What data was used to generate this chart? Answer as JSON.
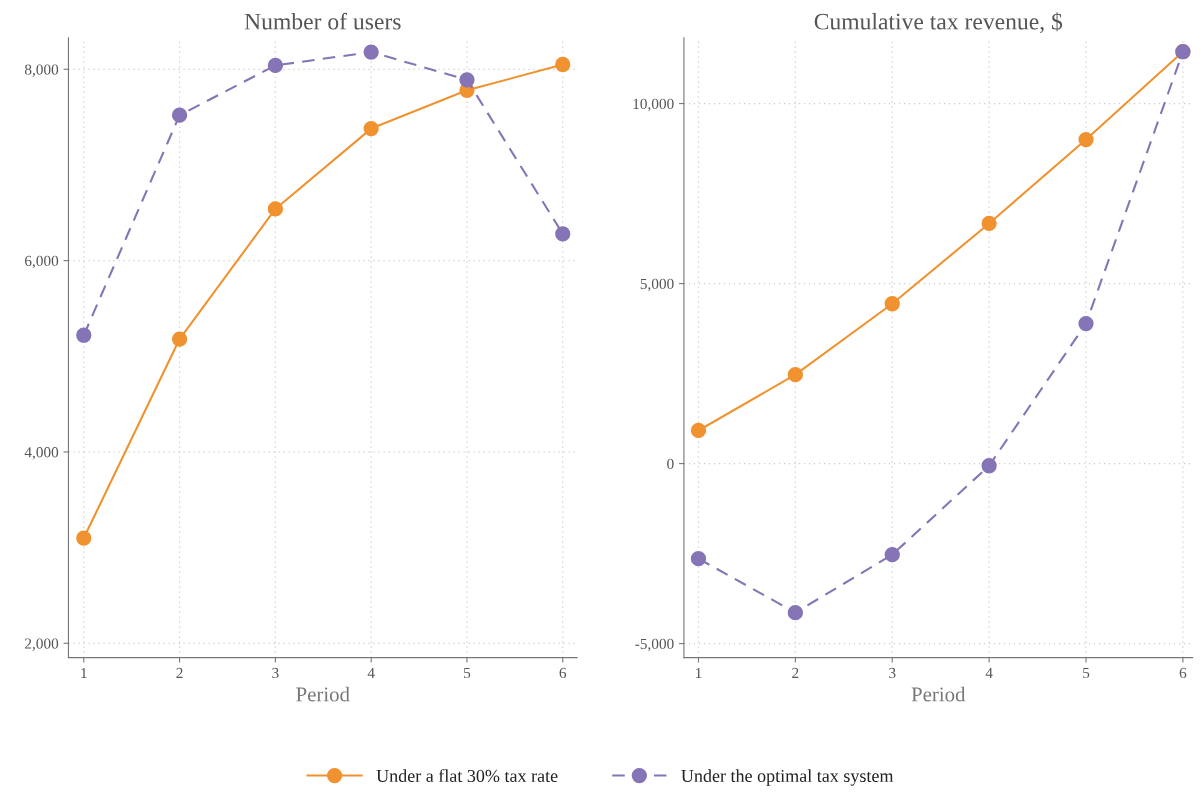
{
  "chart_data": [
    {
      "type": "line",
      "title": "Number of users",
      "xlabel": "Period",
      "x": [
        1,
        2,
        3,
        4,
        5,
        6
      ],
      "xlim": [
        0.84,
        6.15
      ],
      "xticks": [
        1,
        2,
        3,
        4,
        5,
        6
      ],
      "ylim": [
        1850,
        8330
      ],
      "yticks": [
        {
          "value": 2000,
          "label": "2,000"
        },
        {
          "value": 4000,
          "label": "4,000"
        },
        {
          "value": 6000,
          "label": "6,000"
        },
        {
          "value": 8000,
          "label": "8,000"
        }
      ],
      "grid": true,
      "marker": "circle",
      "legend": "bottom",
      "series": [
        {
          "name": "Under a flat 30% tax rate",
          "color": "#f0922f",
          "line_style": "solid",
          "values": [
            3100,
            5180,
            6540,
            7380,
            7780,
            8050
          ]
        },
        {
          "name": "Under the optimal tax system",
          "color": "#8574b6",
          "line_style": "dashed",
          "values": [
            5220,
            7520,
            8040,
            8180,
            7890,
            6280
          ]
        }
      ]
    },
    {
      "type": "line",
      "title": "Cumulative tax revenue, $",
      "xlabel": "Period",
      "x": [
        1,
        2,
        3,
        4,
        5,
        6
      ],
      "xlim": [
        0.85,
        6.1
      ],
      "xticks": [
        1,
        2,
        3,
        4,
        5,
        6
      ],
      "ylim": [
        -5390,
        11830
      ],
      "yticks": [
        {
          "value": -5000,
          "label": "-5,000"
        },
        0,
        {
          "value": 5000,
          "label": "5,000"
        },
        {
          "value": 10000,
          "label": "10,000"
        }
      ],
      "grid": true,
      "marker": "circle",
      "series": [
        {
          "name": "Under a flat 30% tax rate",
          "color": "#f0922f",
          "line_style": "solid",
          "values": [
            920,
            2470,
            4440,
            6670,
            9000,
            11440
          ]
        },
        {
          "name": "Under the optimal tax system",
          "color": "#8574b6",
          "line_style": "dashed",
          "values": [
            -2640,
            -4140,
            -2530,
            -60,
            3890,
            11440
          ]
        }
      ]
    }
  ]
}
